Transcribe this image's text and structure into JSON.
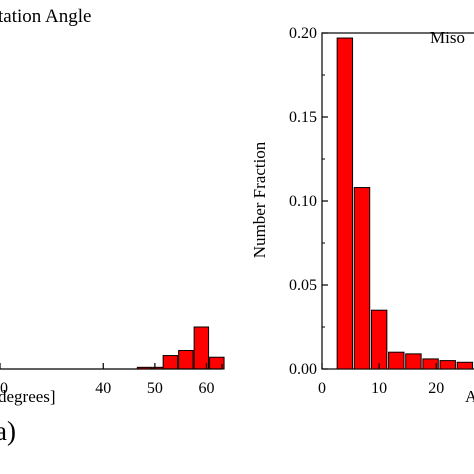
{
  "chart_data": [
    {
      "type": "bar",
      "title": "…ientation Angle",
      "title_visible": "tation Angle",
      "xlabel_visible": "degrees]",
      "panel_label": "(a)",
      "xlim": [
        20,
        63
      ],
      "ylim": [
        0,
        0.2
      ],
      "xticks_visible": [
        "0",
        "40",
        "50",
        "60"
      ],
      "bar_color": "#ff0000",
      "bars": [
        {
          "x": 48,
          "value": 0.001
        },
        {
          "x": 51,
          "value": 0.001
        },
        {
          "x": 53,
          "value": 0.008
        },
        {
          "x": 56,
          "value": 0.011
        },
        {
          "x": 59,
          "value": 0.025
        },
        {
          "x": 62,
          "value": 0.007
        }
      ],
      "bin_width": 3
    },
    {
      "type": "bar",
      "title_visible": "Miso",
      "ylabel": "Number Fraction",
      "xlabel_visible": "A",
      "xlim": [
        0,
        28
      ],
      "ylim": [
        0,
        0.2
      ],
      "yticks": [
        "0.00",
        "0.05",
        "0.10",
        "0.15",
        "0.20"
      ],
      "xticks": [
        "0",
        "10",
        "20"
      ],
      "bar_color": "#ff0000",
      "bars": [
        {
          "x": 4,
          "value": 0.197
        },
        {
          "x": 7,
          "value": 0.108
        },
        {
          "x": 10,
          "value": 0.035
        },
        {
          "x": 13,
          "value": 0.01
        },
        {
          "x": 16,
          "value": 0.009
        },
        {
          "x": 19,
          "value": 0.006
        },
        {
          "x": 22,
          "value": 0.005
        },
        {
          "x": 25,
          "value": 0.004
        }
      ],
      "bin_width": 3
    }
  ]
}
